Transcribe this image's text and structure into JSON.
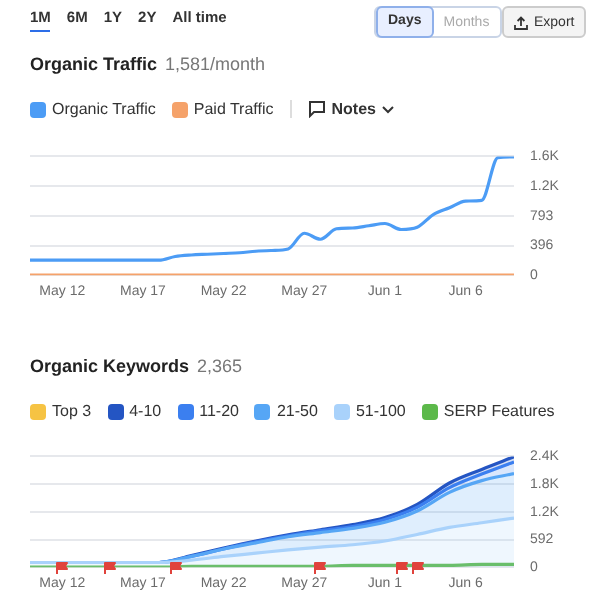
{
  "chart_data": [
    {
      "type": "line",
      "title": "Organic Traffic",
      "subtitle": "1,581/month",
      "x": [
        "--05-10",
        "--05-11",
        "--05-12",
        "--05-13",
        "--05-14",
        "--05-15",
        "--05-16",
        "--05-17",
        "--05-18",
        "--05-19",
        "--05-20",
        "--05-21",
        "--05-22",
        "--05-23",
        "--05-24",
        "--05-25",
        "--05-26",
        "--05-27",
        "--05-28",
        "--05-29",
        "--05-30",
        "--05-31",
        "--06-01",
        "--06-02",
        "--06-03",
        "--06-04",
        "--06-05",
        "--06-06",
        "--06-07",
        "--06-08",
        "--06-09"
      ],
      "series": [
        {
          "name": "Organic Traffic",
          "color": "#4c9cf5",
          "values": [
            200,
            200,
            200,
            200,
            200,
            200,
            200,
            200,
            200,
            250,
            270,
            280,
            290,
            300,
            320,
            330,
            350,
            560,
            480,
            620,
            630,
            660,
            690,
            610,
            640,
            810,
            900,
            990,
            1000,
            1570,
            1581
          ]
        },
        {
          "name": "Paid Traffic",
          "color": "#f5a26a",
          "values": [
            0,
            0,
            0,
            0,
            0,
            0,
            0,
            0,
            0,
            0,
            0,
            0,
            0,
            0,
            0,
            0,
            0,
            0,
            0,
            0,
            0,
            0,
            0,
            0,
            0,
            0,
            0,
            0,
            0,
            0,
            0
          ]
        }
      ],
      "xlim": [
        "--05-10",
        "--06-09"
      ],
      "xticks": [
        {
          "value": "--05-12",
          "label": "May 12"
        },
        {
          "value": "--05-17",
          "label": "May 17"
        },
        {
          "value": "--05-22",
          "label": "May 22"
        },
        {
          "value": "--05-27",
          "label": "May 27"
        },
        {
          "value": "--06-01",
          "label": "Jun 1"
        },
        {
          "value": "--06-06",
          "label": "Jun 6"
        }
      ],
      "ylim": [
        0,
        1586
      ],
      "yticks": [
        0,
        396,
        793,
        {
          "value": 1189,
          "label": "1.2K"
        },
        {
          "value": 1586,
          "label": "1.6K"
        }
      ],
      "grid": "y",
      "legend": "top left",
      "marker": "none",
      "annotations": [
        "1M",
        "6M",
        "1Y",
        "2Y",
        "All time",
        "Days",
        "Months",
        "Export",
        "Notes"
      ]
    },
    {
      "type": "area",
      "title": "Organic Keywords",
      "subtitle": "2,365",
      "stacked": true,
      "x": [
        "--05-10",
        "--05-12",
        "--05-14",
        "--05-16",
        "--05-18",
        "--05-20",
        "--05-22",
        "--05-24",
        "--05-26",
        "--05-28",
        "--05-30",
        "--06-01",
        "--06-03",
        "--06-05",
        "--06-07",
        "--06-09"
      ],
      "series": [
        {
          "name": "51-100",
          "color": "#a9d2fb",
          "values": [
            100,
            100,
            100,
            100,
            100,
            150,
            230,
            300,
            370,
            430,
            480,
            560,
            700,
            850,
            950,
            1050
          ]
        },
        {
          "name": "21-50",
          "color": "#56a6f5",
          "values": [
            0,
            0,
            0,
            0,
            0,
            80,
            160,
            220,
            280,
            310,
            350,
            400,
            500,
            750,
            900,
            950
          ]
        },
        {
          "name": "11-20",
          "color": "#3b7ff0",
          "values": [
            0,
            0,
            0,
            0,
            0,
            0,
            0,
            20,
            20,
            40,
            40,
            60,
            80,
            100,
            140,
            250
          ]
        },
        {
          "name": "4-10",
          "color": "#2455c3",
          "values": [
            0,
            0,
            0,
            0,
            0,
            20,
            20,
            20,
            20,
            20,
            40,
            40,
            60,
            100,
            100,
            110
          ]
        },
        {
          "name": "Top 3",
          "color": "#f6c343",
          "values": [
            null,
            null,
            null,
            null,
            null,
            null,
            null,
            null,
            null,
            null,
            null,
            null,
            null,
            null,
            null,
            null
          ]
        },
        {
          "name": "SERP Features",
          "type": "line",
          "color": "#5cb94a",
          "values": [
            0,
            0,
            0,
            0,
            0,
            20,
            20,
            20,
            20,
            20,
            40,
            40,
            40,
            40,
            60,
            60
          ]
        }
      ],
      "xlim": [
        "--05-10",
        "--06-09"
      ],
      "xticks": [
        {
          "value": "--05-12",
          "label": "May 12"
        },
        {
          "value": "--05-17",
          "label": "May 17"
        },
        {
          "value": "--05-22",
          "label": "May 22"
        },
        {
          "value": "--05-27",
          "label": "May 27"
        },
        {
          "value": "--06-01",
          "label": "Jun 1"
        },
        {
          "value": "--06-06",
          "label": "Jun 6"
        }
      ],
      "ylim": [
        0,
        2368
      ],
      "yticks": [
        0,
        592,
        {
          "value": 1184,
          "label": "1.2K"
        },
        {
          "value": 1776,
          "label": "1.8K"
        },
        {
          "value": 2368,
          "label": "2.4K"
        }
      ],
      "grid": "y",
      "legend": "top left",
      "marker": "none"
    }
  ]
}
